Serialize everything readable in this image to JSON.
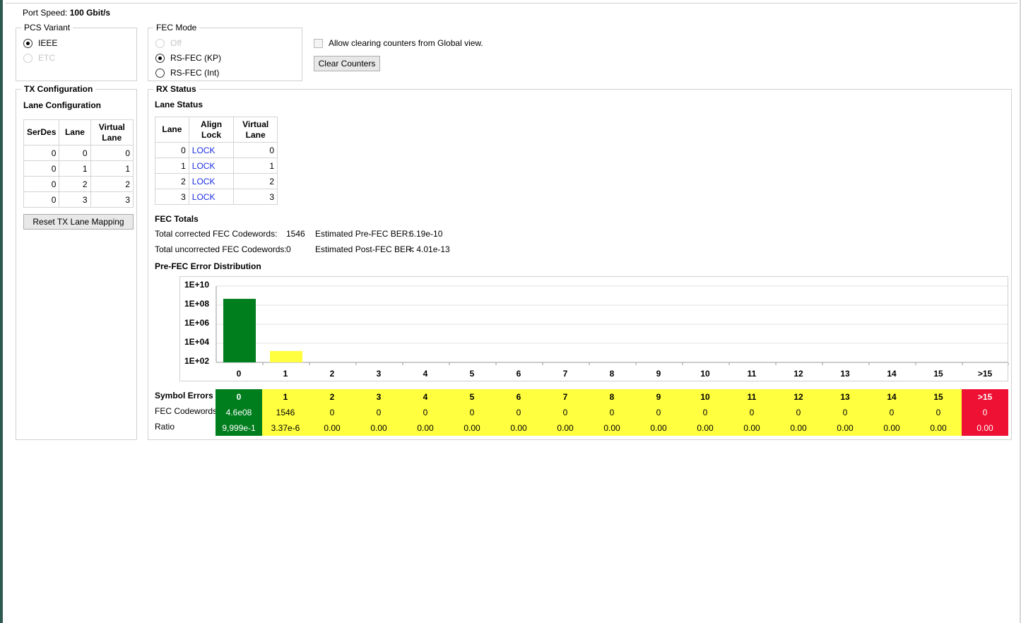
{
  "port_speed": {
    "label": "Port Speed:",
    "value": "100 Gbit/s"
  },
  "pcs_variant": {
    "title": "PCS Variant",
    "options": [
      {
        "label": "IEEE",
        "checked": true,
        "disabled": false
      },
      {
        "label": "ETC",
        "checked": false,
        "disabled": true
      }
    ]
  },
  "fec_mode": {
    "title": "FEC Mode",
    "options": [
      {
        "label": "Off",
        "checked": false,
        "disabled": true
      },
      {
        "label": "RS-FEC (KP)",
        "checked": true,
        "disabled": false
      },
      {
        "label": "RS-FEC (Int)",
        "checked": false,
        "disabled": false
      }
    ]
  },
  "global": {
    "allow_clear_label": "Allow clearing counters from Global view.",
    "clear_counters_label": "Clear Counters"
  },
  "tx": {
    "title": "TX Configuration",
    "subtitle": "Lane Configuration",
    "headers": [
      "SerDes",
      "Lane",
      "Virtual Lane"
    ],
    "rows": [
      [
        "0",
        "0",
        "0"
      ],
      [
        "0",
        "1",
        "1"
      ],
      [
        "0",
        "2",
        "2"
      ],
      [
        "0",
        "3",
        "3"
      ]
    ],
    "reset_label": "Reset TX Lane Mapping"
  },
  "rx": {
    "title": "RX Status",
    "lane_status_title": "Lane Status",
    "headers": [
      "Lane",
      "Align Lock",
      "Virtual Lane"
    ],
    "rows": [
      [
        "0",
        "LOCK",
        "0"
      ],
      [
        "1",
        "LOCK",
        "1"
      ],
      [
        "2",
        "LOCK",
        "2"
      ],
      [
        "3",
        "LOCK",
        "3"
      ]
    ]
  },
  "fec_totals": {
    "title": "FEC Totals",
    "corrected_label": "Total corrected FEC Codewords:",
    "corrected_value": "1546",
    "uncorrected_label": "Total uncorrected FEC Codewords:",
    "uncorrected_value": "0",
    "pre_ber_label": "Estimated Pre-FEC BER:",
    "pre_ber_value": "6.19e-10",
    "post_ber_label": "Estimated Post-FEC BER:",
    "post_ber_value": "< 4.01e-13"
  },
  "distribution": {
    "title": "Pre-FEC Error Distribution",
    "row_labels": [
      "Symbol Errors",
      "FEC Codewords",
      "Ratio"
    ],
    "symbols": [
      "0",
      "1",
      "2",
      "3",
      "4",
      "5",
      "6",
      "7",
      "8",
      "9",
      "10",
      "11",
      "12",
      "13",
      "14",
      "15",
      ">15"
    ],
    "codewords": [
      "4.6e08",
      "1546",
      "0",
      "0",
      "0",
      "0",
      "0",
      "0",
      "0",
      "0",
      "0",
      "0",
      "0",
      "0",
      "0",
      "0",
      "0"
    ],
    "ratios": [
      "9,999e-1",
      "3.37e-6",
      "0.00",
      "0.00",
      "0.00",
      "0.00",
      "0.00",
      "0.00",
      "0.00",
      "0.00",
      "0.00",
      "0.00",
      "0.00",
      "0.00",
      "0.00",
      "0.00",
      "0.00"
    ],
    "colors": {
      "green": "#007e1e",
      "yellow": "#ffff40",
      "red": "#ee1133"
    }
  },
  "chart_data": {
    "type": "bar",
    "categories": [
      "0",
      "1",
      "2",
      "3",
      "4",
      "5",
      "6",
      "7",
      "8",
      "9",
      "10",
      "11",
      "12",
      "13",
      "14",
      "15",
      ">15"
    ],
    "values": [
      460000000,
      1546,
      0,
      0,
      0,
      0,
      0,
      0,
      0,
      0,
      0,
      0,
      0,
      0,
      0,
      0,
      0
    ],
    "y_scale": "log",
    "ylim": [
      100,
      10000000000
    ],
    "ytick_labels": [
      "1E+10",
      "1E+08",
      "1E+06",
      "1E+04",
      "1E+02"
    ],
    "grid": true,
    "bar_colors": [
      "#007e1e",
      "#ffff40"
    ]
  }
}
